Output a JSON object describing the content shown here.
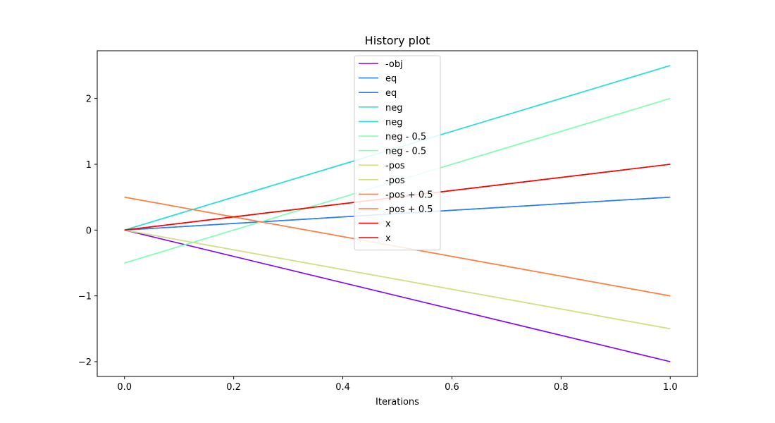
{
  "chart_data": {
    "type": "line",
    "title": "History plot",
    "xlabel": "Iterations",
    "ylabel": "",
    "xlim": [
      -0.05,
      1.05
    ],
    "ylim": [
      -2.225,
      2.725
    ],
    "x_ticks": [
      0.0,
      0.2,
      0.4,
      0.6,
      0.8,
      1.0
    ],
    "x_tick_labels": [
      "0.0",
      "0.2",
      "0.4",
      "0.6",
      "0.8",
      "1.0"
    ],
    "y_ticks": [
      -2,
      -1,
      0,
      1,
      2
    ],
    "y_tick_labels": [
      "−2",
      "−1",
      "0",
      "1",
      "2"
    ],
    "grid": false,
    "legend_position": "top-center",
    "x": [
      0.0,
      1.0
    ],
    "series": [
      {
        "name": "-obj",
        "color": "#8000ff",
        "values": [
          0,
          -2
        ]
      },
      {
        "name": "eq",
        "color": "#2c7ef7",
        "values": [
          0,
          0.5
        ]
      },
      {
        "name": "eq",
        "color": "#2c7ef7",
        "values": [
          0,
          0.5
        ]
      },
      {
        "name": "neg",
        "color": "#2adddd",
        "values": [
          0,
          2.5
        ]
      },
      {
        "name": "neg",
        "color": "#2adddd",
        "values": [
          0,
          2.5
        ]
      },
      {
        "name": "neg - 0.5",
        "color": "#80ffb4",
        "values": [
          -0.5,
          2
        ]
      },
      {
        "name": "neg - 0.5",
        "color": "#80ffb4",
        "values": [
          -0.5,
          2
        ]
      },
      {
        "name": "-pos",
        "color": "#d4dd80",
        "values": [
          0,
          -1.5
        ]
      },
      {
        "name": "-pos",
        "color": "#d4dd80",
        "values": [
          0,
          -1.5
        ]
      },
      {
        "name": "-pos + 0.5",
        "color": "#ff7e41",
        "values": [
          0.5,
          -1
        ]
      },
      {
        "name": "-pos + 0.5",
        "color": "#ff7e41",
        "values": [
          0.5,
          -1
        ]
      },
      {
        "name": "x",
        "color": "#ff0000",
        "values": [
          0,
          1
        ]
      },
      {
        "name": "x",
        "color": "#ff0000",
        "values": [
          0,
          1
        ]
      }
    ]
  }
}
